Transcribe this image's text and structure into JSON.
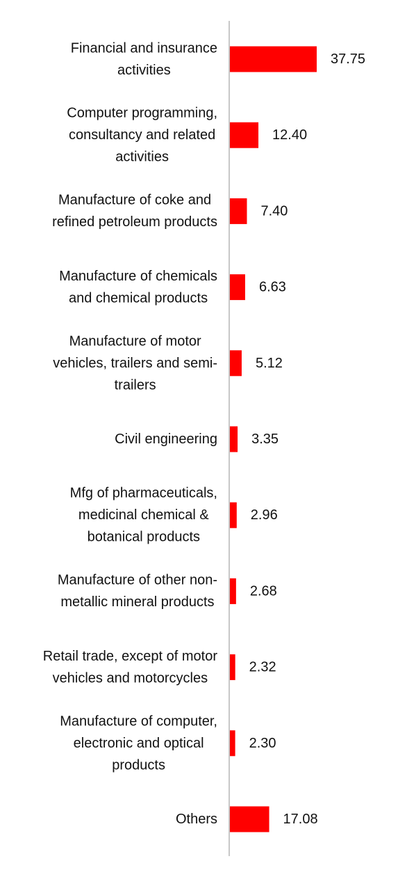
{
  "chart_data": {
    "type": "bar",
    "orientation": "horizontal",
    "categories": [
      [
        "Financial and insurance",
        "activities"
      ],
      [
        "Computer programming,",
        "consultancy and related",
        "activities"
      ],
      [
        "Manufacture of coke and",
        "refined petroleum products"
      ],
      [
        "Manufacture of chemicals",
        "and chemical products"
      ],
      [
        "Manufacture of motor",
        "vehicles, trailers and semi-",
        "trailers"
      ],
      [
        "Civil engineering"
      ],
      [
        "Mfg of pharmaceuticals,",
        "medicinal chemical &",
        "botanical products"
      ],
      [
        "Manufacture of other non-",
        "metallic mineral products"
      ],
      [
        "Retail trade, except of motor",
        "vehicles and motorcycles"
      ],
      [
        "Manufacture of computer,",
        "electronic and optical",
        "products"
      ],
      [
        "Others"
      ]
    ],
    "values": [
      37.75,
      12.4,
      7.4,
      6.63,
      5.12,
      3.35,
      2.96,
      2.68,
      2.32,
      2.3,
      17.08
    ],
    "value_labels": [
      "37.75",
      "12.40",
      "7.40",
      "6.63",
      "5.12",
      "3.35",
      "2.96",
      "2.68",
      "2.32",
      "2.30",
      "17.08"
    ],
    "bar_color": "#ff0000",
    "axis_color": "#c8c8c8",
    "xlim": [
      0,
      37.75
    ],
    "grid": false,
    "legend": "none",
    "title": "",
    "xlabel": "",
    "ylabel": ""
  }
}
